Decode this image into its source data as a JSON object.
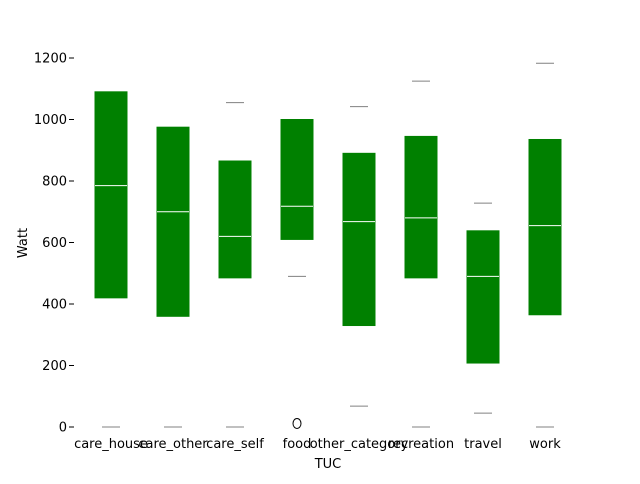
{
  "chart_data": {
    "type": "box",
    "title": "",
    "xlabel": "TUC",
    "ylabel": "Watt",
    "ylim": [
      0,
      1300
    ],
    "yticks": [
      0,
      200,
      400,
      600,
      800,
      1000,
      1200
    ],
    "grid": false,
    "categories": [
      "care_house",
      "care_other",
      "care_self",
      "food",
      "other_category",
      "recreation",
      "travel",
      "work"
    ],
    "boxes": [
      {
        "category": "care_house",
        "q1": 420,
        "median": 785,
        "q3": 1090,
        "whisker_low": 0,
        "whisker_high": null,
        "outliers": []
      },
      {
        "category": "care_other",
        "q1": 360,
        "median": 700,
        "q3": 975,
        "whisker_low": 0,
        "whisker_high": null,
        "outliers": []
      },
      {
        "category": "care_self",
        "q1": 485,
        "median": 620,
        "q3": 865,
        "whisker_low": 0,
        "whisker_high": 1055,
        "outliers": []
      },
      {
        "category": "food",
        "q1": 610,
        "median": 718,
        "q3": 1000,
        "whisker_low": 490,
        "whisker_high": null,
        "outliers": [
          5
        ]
      },
      {
        "category": "other_category",
        "q1": 330,
        "median": 668,
        "q3": 890,
        "whisker_low": 68,
        "whisker_high": 1042,
        "outliers": []
      },
      {
        "category": "recreation",
        "q1": 485,
        "median": 680,
        "q3": 945,
        "whisker_low": 0,
        "whisker_high": 1125,
        "outliers": []
      },
      {
        "category": "travel",
        "q1": 208,
        "median": 490,
        "q3": 638,
        "whisker_low": 45,
        "whisker_high": 728,
        "outliers": []
      },
      {
        "category": "work",
        "q1": 365,
        "median": 655,
        "q3": 935,
        "whisker_low": 0,
        "whisker_high": 1183,
        "outliers": []
      }
    ],
    "colors": {
      "box_fill": "#008000",
      "median_line": "#ffffff",
      "whisker_cap": "#808080",
      "outlier_edge": "#000000",
      "axis": "#000000"
    }
  }
}
